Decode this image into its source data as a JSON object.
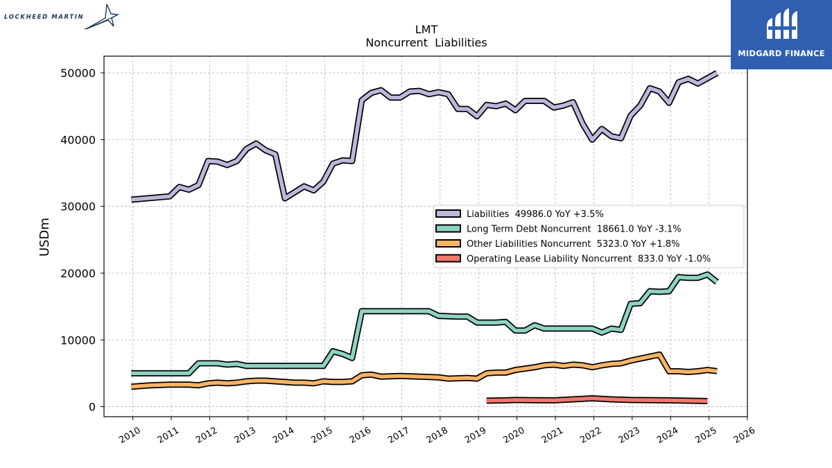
{
  "logos": {
    "left_text": "LOCKHEED MARTIN",
    "right_text": "MIDGARD FINANCE"
  },
  "colors": {
    "liabilities": "#bcb8dc",
    "long_term_debt": "#8dd3c2",
    "other_liabilities": "#f9b466",
    "operating_lease": "#f1786d",
    "outline": "#000000",
    "grid": "#b0b0b0",
    "midgard_bg": "#2f5fae",
    "lockheed_text": "#1b365d"
  },
  "chart_data": {
    "type": "line",
    "title": "LMT",
    "subtitle": "Noncurrent  Liabilities",
    "xlabel": "",
    "ylabel": "USDm",
    "xlim": [
      2009.25,
      2026.0
    ],
    "ylim": [
      -1500,
      52500
    ],
    "x_ticks": [
      2010,
      2011,
      2012,
      2013,
      2014,
      2015,
      2016,
      2017,
      2018,
      2019,
      2020,
      2021,
      2022,
      2023,
      2024,
      2025,
      2026
    ],
    "y_ticks": [
      0,
      10000,
      20000,
      30000,
      40000,
      50000
    ],
    "grid": true,
    "legend_position": "center-right",
    "series": [
      {
        "name": "Liabilities",
        "legend_label": "Liabilities  49986.0 YoY +3.5%",
        "color_key": "liabilities",
        "points": [
          [
            2009.96,
            31000
          ],
          [
            2010.96,
            31500
          ],
          [
            2011.21,
            32900
          ],
          [
            2011.46,
            32500
          ],
          [
            2011.71,
            33200
          ],
          [
            2011.96,
            36800
          ],
          [
            2012.21,
            36700
          ],
          [
            2012.46,
            36200
          ],
          [
            2012.71,
            36800
          ],
          [
            2012.96,
            38600
          ],
          [
            2013.21,
            39400
          ],
          [
            2013.46,
            38400
          ],
          [
            2013.71,
            37800
          ],
          [
            2013.96,
            31200
          ],
          [
            2014.21,
            32100
          ],
          [
            2014.46,
            33000
          ],
          [
            2014.71,
            32400
          ],
          [
            2014.96,
            33700
          ],
          [
            2015.21,
            36400
          ],
          [
            2015.46,
            36900
          ],
          [
            2015.71,
            36800
          ],
          [
            2015.96,
            45900
          ],
          [
            2016.21,
            47000
          ],
          [
            2016.46,
            47400
          ],
          [
            2016.71,
            46300
          ],
          [
            2016.96,
            46300
          ],
          [
            2017.21,
            47200
          ],
          [
            2017.46,
            47300
          ],
          [
            2017.71,
            46800
          ],
          [
            2017.96,
            47100
          ],
          [
            2018.21,
            46800
          ],
          [
            2018.46,
            44600
          ],
          [
            2018.71,
            44600
          ],
          [
            2018.96,
            43500
          ],
          [
            2019.21,
            45200
          ],
          [
            2019.46,
            45000
          ],
          [
            2019.71,
            45400
          ],
          [
            2019.96,
            44400
          ],
          [
            2020.21,
            45800
          ],
          [
            2020.46,
            45800
          ],
          [
            2020.71,
            45800
          ],
          [
            2020.96,
            44800
          ],
          [
            2021.21,
            45100
          ],
          [
            2021.46,
            45600
          ],
          [
            2021.71,
            42400
          ],
          [
            2021.96,
            40000
          ],
          [
            2022.21,
            41600
          ],
          [
            2022.46,
            40500
          ],
          [
            2022.71,
            40200
          ],
          [
            2022.96,
            43600
          ],
          [
            2023.21,
            45100
          ],
          [
            2023.46,
            47700
          ],
          [
            2023.71,
            47200
          ],
          [
            2023.96,
            45500
          ],
          [
            2024.21,
            48600
          ],
          [
            2024.46,
            49100
          ],
          [
            2024.71,
            48400
          ],
          [
            2024.96,
            49200
          ],
          [
            2025.21,
            49986
          ]
        ]
      },
      {
        "name": "Long Term Debt Noncurrent",
        "legend_label": "Long Term Debt Noncurrent  18661.0 YoY -3.1%",
        "color_key": "long_term_debt",
        "points": [
          [
            2009.96,
            5000
          ],
          [
            2010.96,
            5000
          ],
          [
            2011.46,
            5000
          ],
          [
            2011.71,
            6500
          ],
          [
            2011.96,
            6500
          ],
          [
            2012.21,
            6500
          ],
          [
            2012.46,
            6300
          ],
          [
            2012.71,
            6400
          ],
          [
            2012.96,
            6100
          ],
          [
            2013.46,
            6100
          ],
          [
            2013.96,
            6100
          ],
          [
            2014.46,
            6100
          ],
          [
            2014.96,
            6100
          ],
          [
            2015.21,
            8300
          ],
          [
            2015.46,
            7900
          ],
          [
            2015.71,
            7300
          ],
          [
            2015.96,
            14300
          ],
          [
            2016.46,
            14300
          ],
          [
            2016.96,
            14300
          ],
          [
            2017.46,
            14300
          ],
          [
            2017.71,
            14300
          ],
          [
            2017.96,
            13600
          ],
          [
            2018.46,
            13500
          ],
          [
            2018.71,
            13500
          ],
          [
            2018.96,
            12600
          ],
          [
            2019.46,
            12600
          ],
          [
            2019.71,
            12700
          ],
          [
            2019.96,
            11400
          ],
          [
            2020.21,
            11400
          ],
          [
            2020.46,
            12200
          ],
          [
            2020.71,
            11700
          ],
          [
            2020.96,
            11700
          ],
          [
            2021.46,
            11700
          ],
          [
            2021.96,
            11700
          ],
          [
            2022.21,
            11100
          ],
          [
            2022.46,
            11700
          ],
          [
            2022.71,
            11500
          ],
          [
            2022.96,
            15400
          ],
          [
            2023.21,
            15500
          ],
          [
            2023.46,
            17300
          ],
          [
            2023.71,
            17200
          ],
          [
            2023.96,
            17300
          ],
          [
            2024.21,
            19400
          ],
          [
            2024.46,
            19300
          ],
          [
            2024.71,
            19300
          ],
          [
            2024.96,
            19800
          ],
          [
            2025.21,
            18661
          ]
        ]
      },
      {
        "name": "Other Liabilities Noncurrent",
        "legend_label": "Other Liabilities Noncurrent  5323.0 YoY +1.8%",
        "color_key": "other_liabilities",
        "points": [
          [
            2009.96,
            3000
          ],
          [
            2010.46,
            3200
          ],
          [
            2010.96,
            3300
          ],
          [
            2011.46,
            3300
          ],
          [
            2011.71,
            3200
          ],
          [
            2011.96,
            3500
          ],
          [
            2012.21,
            3600
          ],
          [
            2012.46,
            3500
          ],
          [
            2012.71,
            3600
          ],
          [
            2012.96,
            3800
          ],
          [
            2013.21,
            3900
          ],
          [
            2013.46,
            3900
          ],
          [
            2013.71,
            3800
          ],
          [
            2013.96,
            3700
          ],
          [
            2014.21,
            3600
          ],
          [
            2014.46,
            3600
          ],
          [
            2014.71,
            3500
          ],
          [
            2014.96,
            3800
          ],
          [
            2015.21,
            3700
          ],
          [
            2015.46,
            3700
          ],
          [
            2015.71,
            3800
          ],
          [
            2015.96,
            4700
          ],
          [
            2016.21,
            4800
          ],
          [
            2016.46,
            4500
          ],
          [
            2016.96,
            4600
          ],
          [
            2017.46,
            4500
          ],
          [
            2017.96,
            4400
          ],
          [
            2018.21,
            4200
          ],
          [
            2018.71,
            4300
          ],
          [
            2018.96,
            4200
          ],
          [
            2019.21,
            5000
          ],
          [
            2019.46,
            5100
          ],
          [
            2019.71,
            5100
          ],
          [
            2019.96,
            5500
          ],
          [
            2020.46,
            5900
          ],
          [
            2020.71,
            6200
          ],
          [
            2020.96,
            6300
          ],
          [
            2021.21,
            6100
          ],
          [
            2021.46,
            6300
          ],
          [
            2021.71,
            6200
          ],
          [
            2021.96,
            5900
          ],
          [
            2022.21,
            6200
          ],
          [
            2022.46,
            6400
          ],
          [
            2022.71,
            6500
          ],
          [
            2022.96,
            6900
          ],
          [
            2023.46,
            7500
          ],
          [
            2023.71,
            7800
          ],
          [
            2023.96,
            5300
          ],
          [
            2024.21,
            5300
          ],
          [
            2024.46,
            5200
          ],
          [
            2024.71,
            5300
          ],
          [
            2024.96,
            5500
          ],
          [
            2025.21,
            5323
          ]
        ]
      },
      {
        "name": "Operating Lease Liability Noncurrent",
        "legend_label": "Operating Lease Liability Noncurrent  833.0 YoY -1.0%",
        "color_key": "operating_lease",
        "points": [
          [
            2019.21,
            900
          ],
          [
            2019.71,
            950
          ],
          [
            2019.96,
            1000
          ],
          [
            2020.96,
            950
          ],
          [
            2021.46,
            1100
          ],
          [
            2021.96,
            1250
          ],
          [
            2022.46,
            1100
          ],
          [
            2022.96,
            1000
          ],
          [
            2023.96,
            950
          ],
          [
            2024.96,
            833
          ]
        ]
      }
    ]
  }
}
